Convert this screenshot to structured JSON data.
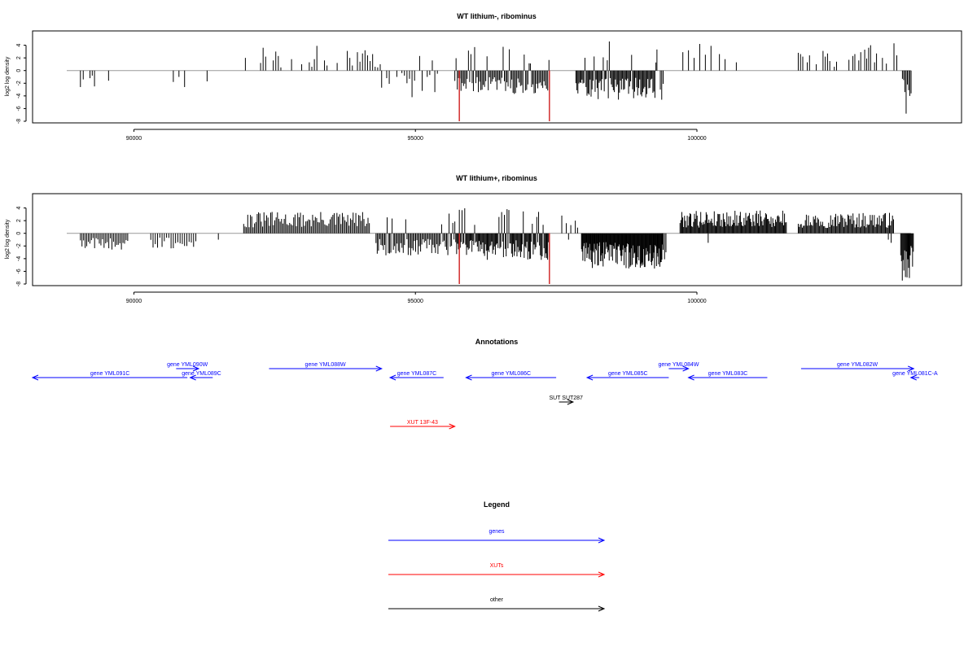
{
  "colors": {
    "gene": "#0000ff",
    "xut": "#ff0000",
    "other": "#000000",
    "bar": "#000000",
    "highlight": "#d22d2d",
    "baseline": "#999999"
  },
  "chart_data": [
    {
      "type": "bar",
      "title": "WT lithium-, ribominus",
      "ylabel": "log2 log density",
      "xlim": [
        88200,
        104700
      ],
      "ylim": [
        -8,
        6
      ],
      "xticks": [
        90000,
        95000,
        100000
      ],
      "yticks": [
        4,
        2,
        0,
        -2,
        -4,
        -6,
        -8
      ],
      "highlights": [
        {
          "x": 95780,
          "y": -8
        },
        {
          "x": 97380,
          "y": -8
        }
      ],
      "segments": [
        {
          "x0": 89050,
          "x1": 89100,
          "step": 50,
          "values": [
            -2.6,
            -1.4
          ]
        },
        {
          "x0": 89220,
          "x1": 89300,
          "step": 40,
          "values": [
            -1.2,
            -0.8,
            -2.5
          ]
        },
        {
          "x0": 89550,
          "x1": 89550,
          "step": 50,
          "values": [
            -1.6
          ]
        },
        {
          "x0": 90700,
          "x1": 90900,
          "step": 100,
          "values": [
            -1.8,
            -1.0,
            -2.6
          ]
        },
        {
          "x0": 91300,
          "x1": 91300,
          "step": 50,
          "values": [
            -1.7
          ]
        },
        {
          "x0": 91980,
          "x1": 92650,
          "step": 45,
          "values": [
            2.0,
            0,
            0,
            0,
            0,
            0,
            1.2,
            3.6,
            2.2,
            0,
            0,
            1.6,
            3.0,
            2.3,
            0.5,
            0
          ]
        },
        {
          "x0": 92800,
          "x1": 94400,
          "step": 45,
          "values": [
            1.8,
            0,
            0,
            0,
            1.0,
            0,
            0,
            1.3,
            0.6,
            1.8,
            3.9,
            0,
            0,
            1.6,
            0.8,
            0,
            0,
            0,
            1.2,
            0,
            0,
            0,
            3.1,
            2.0,
            0.8,
            0,
            2.9,
            1.4,
            2.7,
            3.2,
            2.4,
            1.5,
            2.6,
            0.6,
            0.5,
            1.0
          ]
        },
        {
          "x0": 94400,
          "x1": 95400,
          "step": 45,
          "values": [
            -2.7,
            0,
            -1.2,
            -2.1,
            0,
            0,
            -1.0,
            0,
            -0.4,
            -0.8,
            -2.0,
            -1.3,
            -4.2,
            -1.6,
            0,
            2.3,
            -3.2,
            0,
            -1.0,
            -0.7,
            1.6,
            -3.4,
            -0.5
          ]
        },
        {
          "x0": 95700,
          "x1": 97380,
          "step": 22,
          "amp": 3.8,
          "seed": 11
        },
        {
          "x0": 97850,
          "x1": 99300,
          "step": 18,
          "amp": 4.6,
          "seed": 23
        },
        {
          "x0": 99350,
          "x1": 99400,
          "step": 25,
          "values": [
            -3.0,
            -4.6,
            -2.1
          ]
        },
        {
          "x0": 99700,
          "x1": 100700,
          "step": 50,
          "values": [
            0,
            2.9,
            0,
            3.2,
            0,
            2.0,
            0,
            4.2,
            0,
            2.5,
            0,
            3.9,
            0,
            0,
            2.6,
            0,
            1.8,
            0,
            0,
            0,
            1.3
          ]
        },
        {
          "x0": 101800,
          "x1": 102500,
          "step": 40,
          "values": [
            2.8,
            2.6,
            2.2,
            0,
            1.3,
            2.4,
            0,
            0,
            1.0,
            0,
            0,
            3.1,
            2.2,
            2.7,
            1.5,
            0,
            0.6,
            1.4
          ]
        },
        {
          "x0": 102700,
          "x1": 103400,
          "step": 35,
          "values": [
            1.7,
            0,
            2.3,
            2.6,
            0,
            1.6,
            2.9,
            0,
            3.3,
            1.9,
            3.6,
            4.0,
            0,
            1.3,
            2.7,
            0,
            0,
            2.0,
            0,
            1.1,
            0
          ]
        },
        {
          "x0": 103500,
          "x1": 103550,
          "step": 50,
          "values": [
            4.3,
            2.4
          ]
        },
        {
          "x0": 103650,
          "x1": 103800,
          "step": 22,
          "values": [
            -1.3,
            -1.5,
            -3.4,
            -6.8,
            -2.2,
            -3.1,
            -4.0,
            -3.6
          ]
        }
      ]
    },
    {
      "type": "bar",
      "title": "WT lithium+, ribominus",
      "ylabel": "log2 log density",
      "xlim": [
        88200,
        104700
      ],
      "ylim": [
        -8,
        6
      ],
      "xticks": [
        90000,
        95000,
        100000
      ],
      "yticks": [
        4,
        2,
        0,
        -2,
        -4,
        -6,
        -8
      ],
      "highlights": [
        {
          "x": 95780,
          "y": -8
        },
        {
          "x": 97380,
          "y": -8
        }
      ],
      "segments": [
        {
          "x0": 89050,
          "x1": 89900,
          "step": 28,
          "amp": 2.6,
          "seed": 5,
          "sign": -1
        },
        {
          "x0": 90300,
          "x1": 91100,
          "step": 40,
          "amp": 2.4,
          "seed": 7,
          "sign": -1
        },
        {
          "x0": 91500,
          "x1": 91500,
          "step": 50,
          "values": [
            -1.0
          ]
        },
        {
          "x0": 91950,
          "x1": 94200,
          "step": 24,
          "amp": 3.4,
          "seed": 31,
          "sign": 1
        },
        {
          "x0": 94300,
          "x1": 95700,
          "step": 22,
          "amp": 3.5,
          "seed": 41
        },
        {
          "x0": 95700,
          "x1": 97380,
          "step": 16,
          "amp": 4.2,
          "seed": 53
        },
        {
          "x0": 97600,
          "x1": 97950,
          "step": 40,
          "values": [
            2.8,
            0,
            1.6,
            -1.0,
            1.3,
            0,
            2.0,
            0.9,
            0
          ]
        },
        {
          "x0": 97950,
          "x1": 99400,
          "step": 12,
          "amp": 5.6,
          "seed": 67,
          "sign": -1
        },
        {
          "x0": 99400,
          "x1": 99450,
          "step": 25,
          "values": [
            -2.6,
            -4.1,
            -3.0
          ]
        },
        {
          "x0": 99700,
          "x1": 101600,
          "step": 16,
          "amp": 3.6,
          "seed": 79,
          "sign": 1
        },
        {
          "x0": 100200,
          "x1": 100250,
          "step": 50,
          "values": [
            -1.5
          ]
        },
        {
          "x0": 101800,
          "x1": 103500,
          "step": 18,
          "amp": 3.3,
          "seed": 97,
          "sign": 1
        },
        {
          "x0": 103400,
          "x1": 103500,
          "step": 50,
          "values": [
            -1.0,
            -1.5
          ]
        },
        {
          "x0": 103620,
          "x1": 103850,
          "step": 14,
          "amp": 7.6,
          "seed": 101,
          "sign": -1
        }
      ]
    }
  ],
  "annotations": {
    "title": "Annotations",
    "features": [
      {
        "label": "gene YML091C",
        "type": "gene",
        "start": 88200,
        "end": 90950,
        "strand": "-",
        "row": 0
      },
      {
        "label": "gene YML090W",
        "type": "gene",
        "start": 90750,
        "end": 91150,
        "strand": "+",
        "row": 1
      },
      {
        "label": "gene YML089C",
        "type": "gene",
        "start": 91000,
        "end": 91400,
        "strand": "-",
        "row": 0
      },
      {
        "label": "gene YML088W",
        "type": "gene",
        "start": 92400,
        "end": 94400,
        "strand": "+",
        "row": 1
      },
      {
        "label": "gene YML087C",
        "type": "gene",
        "start": 94550,
        "end": 95500,
        "strand": "-",
        "row": 0
      },
      {
        "label": "gene YML086C",
        "type": "gene",
        "start": 95900,
        "end": 97500,
        "strand": "-",
        "row": 0
      },
      {
        "label": "gene YML085C",
        "type": "gene",
        "start": 98050,
        "end": 99500,
        "strand": "-",
        "row": 0
      },
      {
        "label": "gene YML084W",
        "type": "gene",
        "start": 99500,
        "end": 99850,
        "strand": "+",
        "row": 1
      },
      {
        "label": "gene YML083C",
        "type": "gene",
        "start": 99850,
        "end": 101250,
        "strand": "-",
        "row": 0
      },
      {
        "label": "gene YML082W",
        "type": "gene",
        "start": 101850,
        "end": 103850,
        "strand": "+",
        "row": 1
      },
      {
        "label": "gene YML081C-A",
        "type": "gene",
        "start": 103800,
        "end": 103950,
        "strand": "-",
        "row": 0
      },
      {
        "label": "SUT SUT287",
        "type": "other",
        "start": 97550,
        "end": 97800,
        "strand": "+",
        "row": 3
      },
      {
        "label": "XUT 13F-43",
        "type": "xut",
        "start": 94550,
        "end": 95700,
        "strand": "+",
        "row": 6
      }
    ]
  },
  "legend": {
    "title": "Legend",
    "items": [
      {
        "label": "genes",
        "type": "gene"
      },
      {
        "label": "XUTs",
        "type": "xut"
      },
      {
        "label": "other",
        "type": "other"
      }
    ]
  }
}
